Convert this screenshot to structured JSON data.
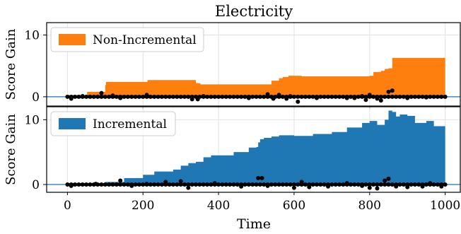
{
  "chart_data": {
    "type": "area",
    "title": "Electricity",
    "xlabel": "Time",
    "xlim": [
      -55,
      1040
    ],
    "x_ticks": [
      0,
      200,
      400,
      600,
      800,
      1000
    ],
    "shared_x": true,
    "grid": true,
    "panels": [
      {
        "ylabel": "Score Gain",
        "ylim": [
          -1.5,
          12
        ],
        "y_ticks": [
          0,
          10
        ],
        "legend": "Non-Incremental",
        "legend_position": "top-left",
        "color": "#ff7f0e",
        "baseline_color": "#1f77b4",
        "series": [
          {
            "name": "Non-Incremental",
            "x": [
              0,
              50,
              52,
              90,
              100,
              102,
              210,
              212,
              330,
              340,
              350,
              352,
              530,
              540,
              560,
              570,
              585,
              600,
              620,
              800,
              810,
              830,
              840,
              850,
              860,
              1000
            ],
            "y": [
              0,
              0,
              0.8,
              0.8,
              1.9,
              2.4,
              2.4,
              2.7,
              2.7,
              2.2,
              2.2,
              2.0,
              2.0,
              2.6,
              3.0,
              3.2,
              3.4,
              3.4,
              3.3,
              3.4,
              4.0,
              4.2,
              4.5,
              4.6,
              6.3,
              6.3
            ]
          }
        ],
        "scatter": {
          "x": [
            10,
            40,
            90,
            120,
            140,
            210,
            330,
            345,
            360,
            480,
            530,
            545,
            560,
            580,
            590,
            610,
            660,
            740,
            760,
            780,
            790,
            800,
            820,
            830,
            850,
            860,
            900,
            950
          ],
          "y": [
            -0.3,
            0.1,
            0.6,
            0.2,
            -0.2,
            0.3,
            -0.4,
            -0.4,
            0.1,
            -0.2,
            0.4,
            -0.3,
            0.3,
            -0.3,
            0.1,
            -0.8,
            -0.2,
            -0.2,
            -0.2,
            0.1,
            -0.5,
            0.3,
            -0.3,
            -0.6,
            0.8,
            1.0,
            -0.2,
            -0.1
          ]
        }
      },
      {
        "ylabel": "Score Gain",
        "ylim": [
          -1.2,
          12
        ],
        "y_ticks": [
          0,
          10
        ],
        "legend": "Incremental",
        "legend_position": "top-left",
        "color": "#1f77b4",
        "baseline_color": "#1f77b4",
        "series": [
          {
            "name": "Incremental",
            "x": [
              0,
              50,
              100,
              150,
              200,
              230,
              280,
              300,
              320,
              340,
              360,
              380,
              400,
              440,
              480,
              500,
              505,
              510,
              520,
              540,
              560,
              600,
              650,
              700,
              740,
              780,
              800,
              820,
              840,
              850,
              860,
              870,
              880,
              900,
              920,
              950,
              970,
              1000
            ],
            "y": [
              0,
              0.1,
              0.4,
              1.0,
              1.5,
              2.0,
              2.3,
              2.9,
              3.3,
              3.5,
              4.2,
              4.5,
              4.5,
              5.0,
              5.7,
              5.8,
              6.5,
              7.0,
              7.2,
              7.4,
              7.6,
              7.5,
              7.8,
              8.1,
              8.8,
              9.5,
              9.8,
              9.2,
              10.0,
              11.4,
              11.2,
              10.5,
              10.8,
              10.6,
              9.5,
              9.8,
              9.0,
              8.4
            ]
          }
        ],
        "scatter": {
          "x": [
            10,
            75,
            140,
            170,
            210,
            260,
            300,
            320,
            390,
            460,
            505,
            515,
            530,
            600,
            620,
            640,
            690,
            740,
            780,
            800,
            820,
            840,
            850,
            870,
            900,
            940,
            960,
            990
          ],
          "y": [
            -0.2,
            0.1,
            0.6,
            -0.2,
            0.1,
            0.4,
            0.5,
            -0.5,
            0.2,
            -0.3,
            1.0,
            1.0,
            -0.2,
            -0.5,
            0.4,
            -0.4,
            -0.3,
            0.2,
            -0.2,
            -0.5,
            -0.6,
            0.6,
            0.9,
            -0.3,
            -0.4,
            -0.3,
            0.2,
            -0.3
          ]
        }
      }
    ]
  }
}
